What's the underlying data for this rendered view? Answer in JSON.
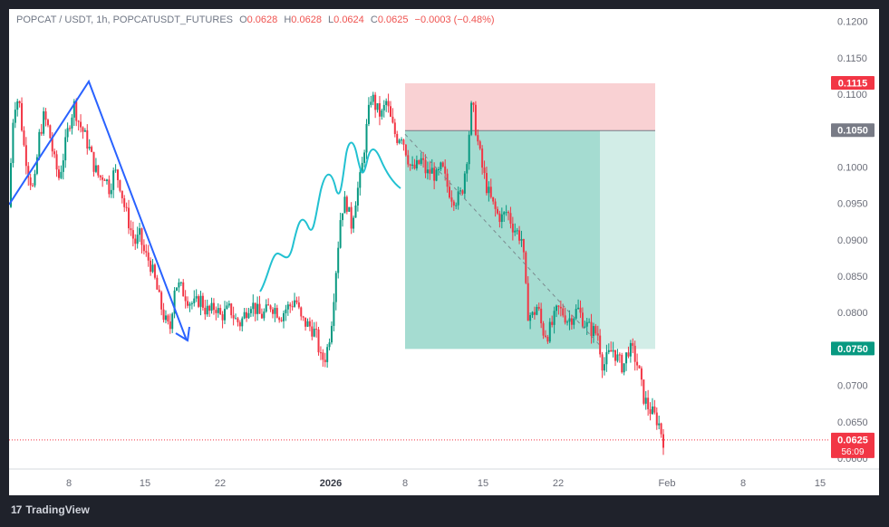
{
  "header": {
    "symbol": "POPCAT / USDT, 1h, POPCATUSDT_FUTURES",
    "open_label": "O",
    "open": "0.0628",
    "high_label": "H",
    "high": "0.0628",
    "low_label": "L",
    "low": "0.0624",
    "close_label": "C",
    "close": "0.0625",
    "change": "−0.0003 (−0.48%)"
  },
  "footer": {
    "brand": "TradingView",
    "logo": "17"
  },
  "chart_data": {
    "type": "candlestick",
    "y_axis_ticks": [
      "0.1200",
      "0.1150",
      "0.1100",
      "0.1050",
      "0.1000",
      "0.0950",
      "0.0900",
      "0.0850",
      "0.0800",
      "0.0750",
      "0.0700",
      "0.0650",
      "0.0600"
    ],
    "ylim": [
      0.0585,
      0.1217
    ],
    "x_axis_ticks": [
      "8",
      "15",
      "22",
      "2026",
      "8",
      "15",
      "22",
      "Feb",
      "8",
      "15"
    ],
    "price_tags": [
      {
        "value": 0.1115,
        "label": "0.1115",
        "color": "#f23645"
      },
      {
        "value": 0.105,
        "label": "0.1050",
        "color": "#787b86"
      },
      {
        "value": 0.075,
        "label": "0.0750",
        "color": "#089981"
      },
      {
        "value": 0.0625,
        "label": "0.0625",
        "sublabel": "56:09",
        "color": "#f23645"
      }
    ],
    "position": {
      "direction": "short",
      "entry": 0.105,
      "stop_loss": 0.1115,
      "take_profit": 0.075
    },
    "drawings": [
      {
        "type": "zigzag-arrow",
        "color": "#2962ff"
      },
      {
        "type": "projection-path",
        "color": "#26c6da"
      }
    ],
    "price_path": [
      0.0945,
      0.1085,
      0.1095,
      0.103,
      0.099,
      0.0965,
      0.104,
      0.107,
      0.105,
      0.101,
      0.0985,
      0.102,
      0.106,
      0.1085,
      0.106,
      0.1045,
      0.1025,
      0.1,
      0.0985,
      0.099,
      0.097,
      0.0995,
      0.098,
      0.0945,
      0.092,
      0.0895,
      0.0905,
      0.088,
      0.087,
      0.0845,
      0.0815,
      0.079,
      0.0775,
      0.084,
      0.0835,
      0.0825,
      0.0815,
      0.081,
      0.082,
      0.0805,
      0.08,
      0.081,
      0.0795,
      0.08,
      0.0805,
      0.079,
      0.0785,
      0.08,
      0.0815,
      0.0805,
      0.0795,
      0.08,
      0.081,
      0.0805,
      0.0795,
      0.0805,
      0.081,
      0.082,
      0.079,
      0.0785,
      0.078,
      0.077,
      0.0735,
      0.074,
      0.078,
      0.086,
      0.094,
      0.0955,
      0.092,
      0.096,
      0.099,
      0.105,
      0.11,
      0.108,
      0.107,
      0.109,
      0.106,
      0.104,
      0.1045,
      0.102,
      0.0995,
      0.1,
      0.101,
      0.099,
      0.0995,
      0.0985,
      0.1,
      0.0975,
      0.096,
      0.0955,
      0.0965,
      0.1015,
      0.109,
      0.104,
      0.1,
      0.097,
      0.095,
      0.0935,
      0.093,
      0.094,
      0.092,
      0.091,
      0.09,
      0.08,
      0.0795,
      0.081,
      0.0775,
      0.077,
      0.0785,
      0.0805,
      0.08,
      0.079,
      0.0795,
      0.0805,
      0.079,
      0.078,
      0.0775,
      0.077,
      0.0725,
      0.074,
      0.075,
      0.0735,
      0.0725,
      0.075,
      0.0745,
      0.0725,
      0.0685,
      0.067,
      0.066,
      0.065,
      0.0625
    ]
  }
}
